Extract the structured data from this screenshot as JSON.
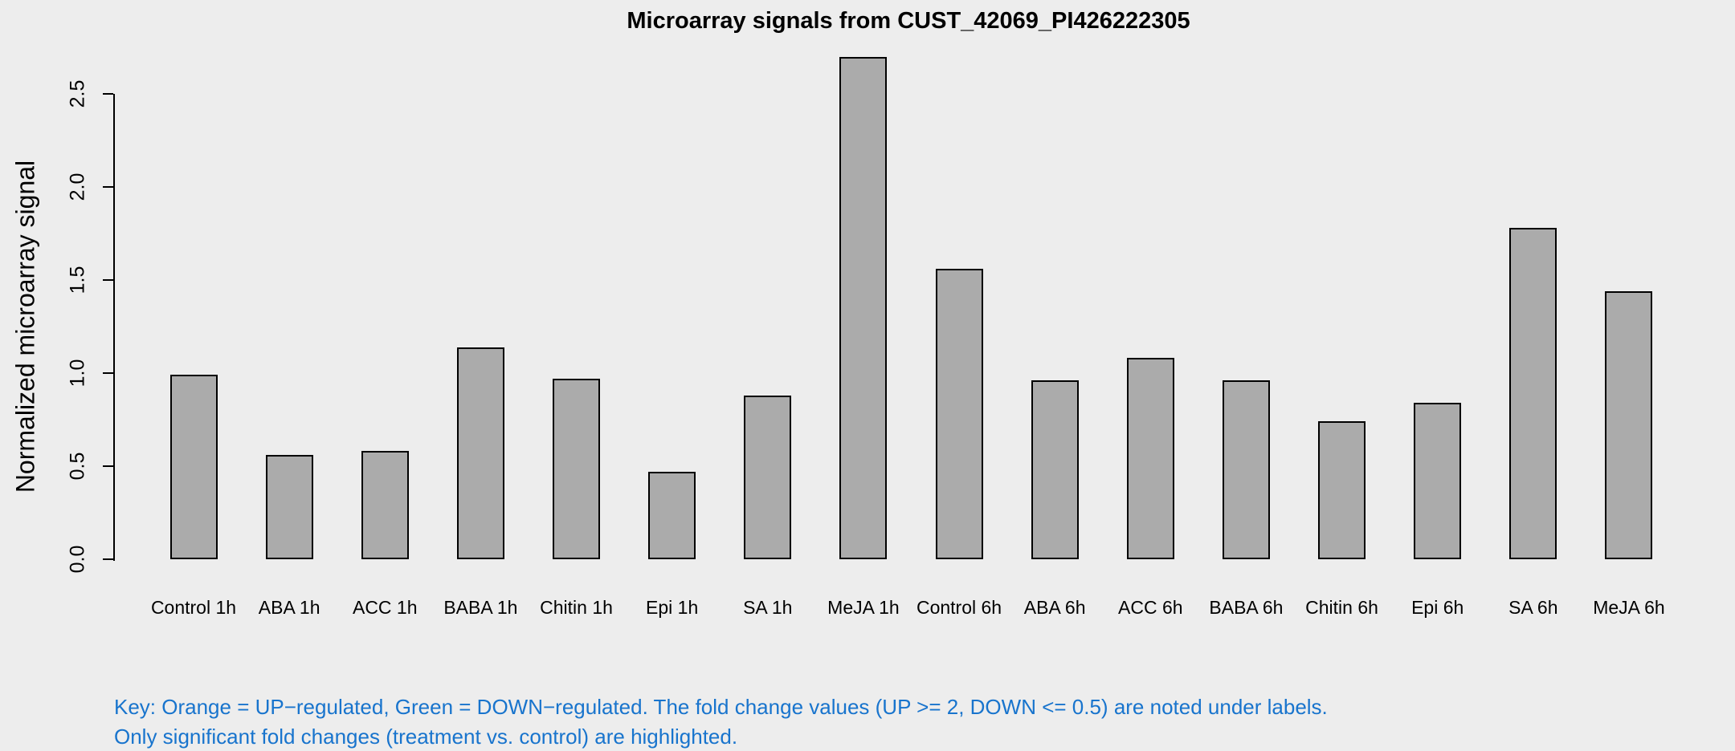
{
  "chart_data": {
    "type": "bar",
    "title": "Microarray signals from CUST_42069_PI426222305",
    "xlabel": "",
    "ylabel": "Normalized microarray signal",
    "categories": [
      "Control 1h",
      "ABA 1h",
      "ACC 1h",
      "BABA 1h",
      "Chitin 1h",
      "Epi 1h",
      "SA 1h",
      "MeJA 1h",
      "Control 6h",
      "ABA 6h",
      "ACC 6h",
      "BABA 6h",
      "Chitin 6h",
      "Epi 6h",
      "SA 6h",
      "MeJA 6h"
    ],
    "values": [
      0.99,
      0.56,
      0.58,
      1.14,
      0.97,
      0.47,
      0.88,
      2.7,
      1.56,
      0.96,
      1.08,
      0.96,
      0.74,
      0.84,
      1.78,
      1.44
    ],
    "yticks": [
      0.0,
      0.5,
      1.0,
      1.5,
      2.0,
      2.5
    ],
    "ylim": [
      0.0,
      2.5
    ],
    "grid": false,
    "legend": "none",
    "bar_fill": "#ABABAB",
    "bar_border": "#000000"
  },
  "footnote": {
    "line1": "Key: Orange = UP−regulated, Green = DOWN−regulated. The fold change values (UP >= 2, DOWN <= 0.5) are noted under labels.",
    "line2": "Only significant fold changes (treatment vs. control) are highlighted.",
    "color": "#1874CD"
  },
  "colors": {
    "background": "#EDEDED",
    "axis": "#000000",
    "text": "#000000"
  }
}
